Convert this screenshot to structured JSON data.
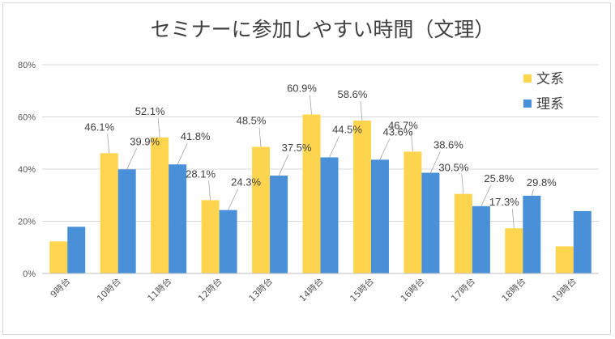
{
  "chart_data": {
    "type": "bar",
    "title": "セミナーに参加しやすい時間（文理）",
    "xlabel": "",
    "ylabel": "",
    "ylim": [
      0,
      80
    ],
    "yticks": [
      "0%",
      "20%",
      "40%",
      "60%",
      "80%"
    ],
    "grid": true,
    "legend_position": "top-right",
    "categories": [
      "9時台",
      "10時台",
      "11時台",
      "12時台",
      "13時台",
      "14時台",
      "15時台",
      "16時台",
      "17時台",
      "18時台",
      "19時台"
    ],
    "series": [
      {
        "name": "文系",
        "color": "#ffd54f",
        "values": [
          12.3,
          46.1,
          52.1,
          28.1,
          48.5,
          60.9,
          58.6,
          46.7,
          30.5,
          17.3,
          10.4
        ],
        "labels": [
          "",
          "46.1%",
          "52.1%",
          "28.1%",
          "48.5%",
          "60.9%",
          "58.6%",
          "46.7%",
          "30.5%",
          "17.3%",
          ""
        ]
      },
      {
        "name": "理系",
        "color": "#4a90d9",
        "values": [
          17.9,
          39.9,
          41.8,
          24.3,
          37.5,
          44.5,
          43.6,
          38.6,
          25.8,
          29.8,
          23.9
        ],
        "labels": [
          "",
          "39.9%",
          "41.8%",
          "24.3%",
          "37.5%",
          "44.5%",
          "43.6%",
          "38.6%",
          "25.8%",
          "29.8%",
          ""
        ]
      }
    ]
  }
}
